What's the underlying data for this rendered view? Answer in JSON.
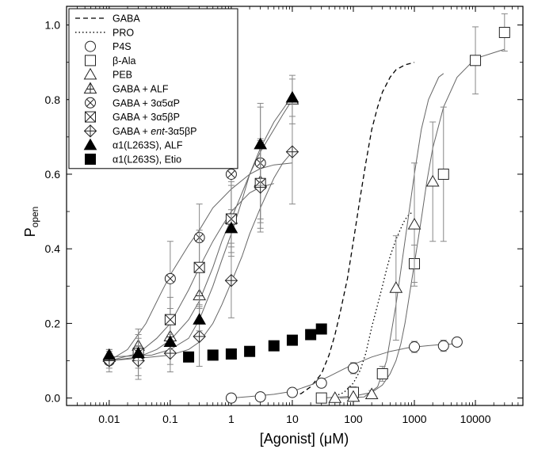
{
  "chart_data": {
    "type": "scatter",
    "title": "",
    "xlabel": "[Agonist] (μM)",
    "ylabel": {
      "main": "P",
      "sub": "open"
    },
    "x_scale": "log",
    "xlim": [
      0.002,
      60000
    ],
    "ylim": [
      -0.02,
      1.05
    ],
    "x_ticks": [
      0.01,
      0.1,
      1,
      10,
      100,
      1000,
      10000
    ],
    "x_tick_labels": [
      "0.01",
      "0.1",
      "1",
      "10",
      "100",
      "1000",
      "10000"
    ],
    "y_ticks": [
      0.0,
      0.2,
      0.4,
      0.6,
      0.8,
      1.0
    ],
    "y_tick_labels": [
      "0.0",
      "0.2",
      "0.4",
      "0.6",
      "0.8",
      "1.0"
    ],
    "grid": false,
    "legend_position": "top-left",
    "legend": [
      {
        "label": "GABA",
        "sym": "dash"
      },
      {
        "label": "PRO",
        "sym": "dot"
      },
      {
        "label": "P4S",
        "sym": "circle"
      },
      {
        "label": "β-Ala",
        "sym": "square"
      },
      {
        "label": "PEB",
        "sym": "triangle"
      },
      {
        "label": "GABA + ALF",
        "sym": "triangle-cross"
      },
      {
        "label": "GABA + 3α5αP",
        "sym": "circle-x"
      },
      {
        "label": "GABA + 3α5βP",
        "sym": "square-x"
      },
      {
        "parts": [
          {
            "t": "GABA + ",
            "i": false
          },
          {
            "t": "ent",
            "i": true
          },
          {
            "t": "-3α5βP",
            "i": false
          }
        ],
        "sym": "diamond-cross"
      },
      {
        "label": "α1(L263S), ALF",
        "sym": "triangle-filled"
      },
      {
        "label": "α1(L263S), Etio",
        "sym": "square-filled"
      }
    ],
    "lines": [
      {
        "legend": 0,
        "style": "dash",
        "points": [
          [
            10,
            0.005
          ],
          [
            14,
            0.012
          ],
          [
            20,
            0.03
          ],
          [
            30,
            0.065
          ],
          [
            40,
            0.115
          ],
          [
            50,
            0.17
          ],
          [
            60,
            0.225
          ],
          [
            80,
            0.32
          ],
          [
            100,
            0.42
          ],
          [
            130,
            0.54
          ],
          [
            160,
            0.63
          ],
          [
            200,
            0.72
          ],
          [
            250,
            0.78
          ],
          [
            300,
            0.82
          ],
          [
            400,
            0.86
          ],
          [
            500,
            0.88
          ],
          [
            700,
            0.893
          ],
          [
            1000,
            0.9
          ]
        ]
      },
      {
        "legend": 1,
        "style": "dot",
        "points": [
          [
            50,
            0.005
          ],
          [
            70,
            0.015
          ],
          [
            100,
            0.04
          ],
          [
            130,
            0.075
          ],
          [
            160,
            0.12
          ],
          [
            200,
            0.19
          ],
          [
            250,
            0.25
          ],
          [
            300,
            0.3
          ],
          [
            350,
            0.345
          ],
          [
            400,
            0.38
          ],
          [
            500,
            0.425
          ],
          [
            600,
            0.455
          ],
          [
            700,
            0.478
          ],
          [
            800,
            0.49
          ],
          [
            900,
            0.497
          ]
        ]
      }
    ],
    "fits": [
      {
        "series": 2,
        "points": [
          [
            1,
            0.0
          ],
          [
            2,
            0.004
          ],
          [
            5,
            0.01
          ],
          [
            10,
            0.018
          ],
          [
            20,
            0.035
          ],
          [
            40,
            0.058
          ],
          [
            70,
            0.078
          ],
          [
            100,
            0.09
          ],
          [
            200,
            0.11
          ],
          [
            400,
            0.125
          ],
          [
            800,
            0.135
          ],
          [
            1600,
            0.14
          ],
          [
            3000,
            0.144
          ],
          [
            5000,
            0.145
          ]
        ]
      },
      {
        "series": 3,
        "points": [
          [
            30,
            0.0
          ],
          [
            100,
            0.005
          ],
          [
            200,
            0.015
          ],
          [
            300,
            0.035
          ],
          [
            400,
            0.065
          ],
          [
            500,
            0.1
          ],
          [
            600,
            0.145
          ],
          [
            700,
            0.2
          ],
          [
            800,
            0.26
          ],
          [
            1000,
            0.36
          ],
          [
            1300,
            0.48
          ],
          [
            1600,
            0.58
          ],
          [
            2000,
            0.67
          ],
          [
            3000,
            0.78
          ],
          [
            5000,
            0.86
          ],
          [
            10000,
            0.91
          ],
          [
            30000,
            0.935
          ]
        ]
      },
      {
        "series": 4,
        "points": [
          [
            60,
            0.0
          ],
          [
            150,
            0.003
          ],
          [
            250,
            0.03
          ],
          [
            350,
            0.1
          ],
          [
            500,
            0.25
          ],
          [
            700,
            0.42
          ],
          [
            1000,
            0.6
          ],
          [
            1300,
            0.72
          ],
          [
            1700,
            0.8
          ],
          [
            2500,
            0.86
          ],
          [
            3000,
            0.87
          ]
        ]
      },
      {
        "series": 5,
        "points": [
          [
            0.01,
            0.1
          ],
          [
            0.03,
            0.11
          ],
          [
            0.06,
            0.13
          ],
          [
            0.1,
            0.155
          ],
          [
            0.2,
            0.21
          ],
          [
            0.3,
            0.26
          ],
          [
            0.5,
            0.35
          ],
          [
            0.7,
            0.42
          ],
          [
            1,
            0.48
          ],
          [
            1.5,
            0.55
          ],
          [
            2,
            0.6
          ],
          [
            3,
            0.66
          ],
          [
            5,
            0.72
          ],
          [
            7,
            0.76
          ],
          [
            10,
            0.8
          ]
        ]
      },
      {
        "series": 6,
        "points": [
          [
            0.01,
            0.1
          ],
          [
            0.02,
            0.13
          ],
          [
            0.04,
            0.2
          ],
          [
            0.07,
            0.28
          ],
          [
            0.1,
            0.33
          ],
          [
            0.2,
            0.41
          ],
          [
            0.3,
            0.45
          ],
          [
            0.5,
            0.51
          ],
          [
            1,
            0.56
          ],
          [
            2,
            0.6
          ],
          [
            3,
            0.615
          ],
          [
            5,
            0.625
          ],
          [
            10,
            0.63
          ]
        ]
      },
      {
        "series": 7,
        "points": [
          [
            0.01,
            0.1
          ],
          [
            0.03,
            0.12
          ],
          [
            0.06,
            0.16
          ],
          [
            0.1,
            0.2
          ],
          [
            0.2,
            0.29
          ],
          [
            0.3,
            0.35
          ],
          [
            0.5,
            0.42
          ],
          [
            0.7,
            0.46
          ],
          [
            1,
            0.5
          ],
          [
            2,
            0.55
          ],
          [
            3,
            0.565
          ],
          [
            5,
            0.575
          ]
        ]
      },
      {
        "series": 8,
        "points": [
          [
            0.01,
            0.1
          ],
          [
            0.05,
            0.11
          ],
          [
            0.1,
            0.115
          ],
          [
            0.2,
            0.13
          ],
          [
            0.3,
            0.15
          ],
          [
            0.5,
            0.2
          ],
          [
            0.7,
            0.25
          ],
          [
            1,
            0.31
          ],
          [
            1.5,
            0.38
          ],
          [
            2,
            0.44
          ],
          [
            3,
            0.51
          ],
          [
            5,
            0.59
          ],
          [
            7,
            0.63
          ],
          [
            10,
            0.66
          ]
        ]
      },
      {
        "series": 9,
        "points": [
          [
            0.01,
            0.11
          ],
          [
            0.05,
            0.115
          ],
          [
            0.1,
            0.13
          ],
          [
            0.2,
            0.16
          ],
          [
            0.3,
            0.21
          ],
          [
            0.5,
            0.3
          ],
          [
            0.7,
            0.37
          ],
          [
            1,
            0.44
          ],
          [
            1.5,
            0.53
          ],
          [
            2,
            0.6
          ],
          [
            3,
            0.67
          ],
          [
            5,
            0.74
          ],
          [
            10,
            0.81
          ]
        ]
      }
    ],
    "series": [
      {
        "legend": 2,
        "sym": "circle",
        "x": [
          1,
          3,
          10,
          30,
          100,
          1000,
          3000,
          5000
        ],
        "y": [
          0.0,
          0.003,
          0.015,
          0.04,
          0.08,
          0.137,
          0.14,
          0.15
        ],
        "err": [
          0,
          0,
          0.01,
          0.01,
          0.015,
          0.015,
          0.015,
          0.0
        ]
      },
      {
        "legend": 3,
        "sym": "square",
        "x": [
          30,
          100,
          300,
          1000,
          3000,
          10000,
          30000
        ],
        "y": [
          0.0,
          0.015,
          0.065,
          0.36,
          0.6,
          0.905,
          0.98
        ],
        "err": [
          0,
          0.015,
          0.02,
          0.05,
          0.18,
          0.09,
          0.05
        ]
      },
      {
        "legend": 4,
        "sym": "triangle",
        "x": [
          50,
          100,
          200,
          500,
          1000,
          2000
        ],
        "y": [
          0.0,
          0.003,
          0.01,
          0.295,
          0.465,
          0.58
        ],
        "err": [
          0,
          0,
          0.01,
          0.14,
          0.165,
          0.16
        ]
      },
      {
        "legend": 5,
        "sym": "triangle-cross",
        "x": [
          0.01,
          0.03,
          0.1,
          0.3,
          1,
          3,
          10
        ],
        "y": [
          0.11,
          0.14,
          0.165,
          0.275,
          0.48,
          0.58,
          0.8
        ],
        "err": [
          0.02,
          0.045,
          0.075,
          0.065,
          0.09,
          0.11,
          0.065
        ]
      },
      {
        "legend": 6,
        "sym": "circle-x",
        "x": [
          0.01,
          0.03,
          0.1,
          0.3,
          1,
          3
        ],
        "y": [
          0.1,
          0.11,
          0.32,
          0.43,
          0.6,
          0.63
        ],
        "err": [
          0.02,
          0.06,
          0.1,
          0.09,
          0.14,
          0.15
        ]
      },
      {
        "legend": 7,
        "sym": "square-x",
        "x": [
          0.03,
          0.1,
          0.3,
          1,
          3
        ],
        "y": [
          0.12,
          0.21,
          0.35,
          0.48,
          0.575
        ],
        "err": [
          0.04,
          0.06,
          0.1,
          0.1,
          0.12
        ]
      },
      {
        "legend": 8,
        "sym": "diamond-cross",
        "x": [
          0.01,
          0.03,
          0.1,
          0.3,
          1,
          3,
          10
        ],
        "y": [
          0.1,
          0.1,
          0.12,
          0.165,
          0.315,
          0.565,
          0.66
        ],
        "err": [
          0.03,
          0.04,
          0.05,
          0.08,
          0.1,
          0.12,
          0.14
        ]
      },
      {
        "legend": 9,
        "sym": "triangle-filled",
        "x": [
          0.01,
          0.03,
          0.1,
          0.3,
          1,
          3,
          10
        ],
        "y": [
          0.115,
          0.12,
          0.15,
          0.21,
          0.455,
          0.68,
          0.805
        ],
        "err": [
          0.01,
          0.02,
          0.02,
          0.03,
          0.05,
          0.11,
          0.05
        ]
      },
      {
        "legend": 10,
        "sym": "square-filled",
        "x": [
          0.2,
          0.5,
          1,
          2,
          5,
          10,
          20,
          30
        ],
        "y": [
          0.11,
          0.115,
          0.118,
          0.125,
          0.14,
          0.155,
          0.17,
          0.185
        ],
        "err": [
          0,
          0,
          0,
          0,
          0,
          0.01,
          0,
          0
        ]
      }
    ]
  }
}
